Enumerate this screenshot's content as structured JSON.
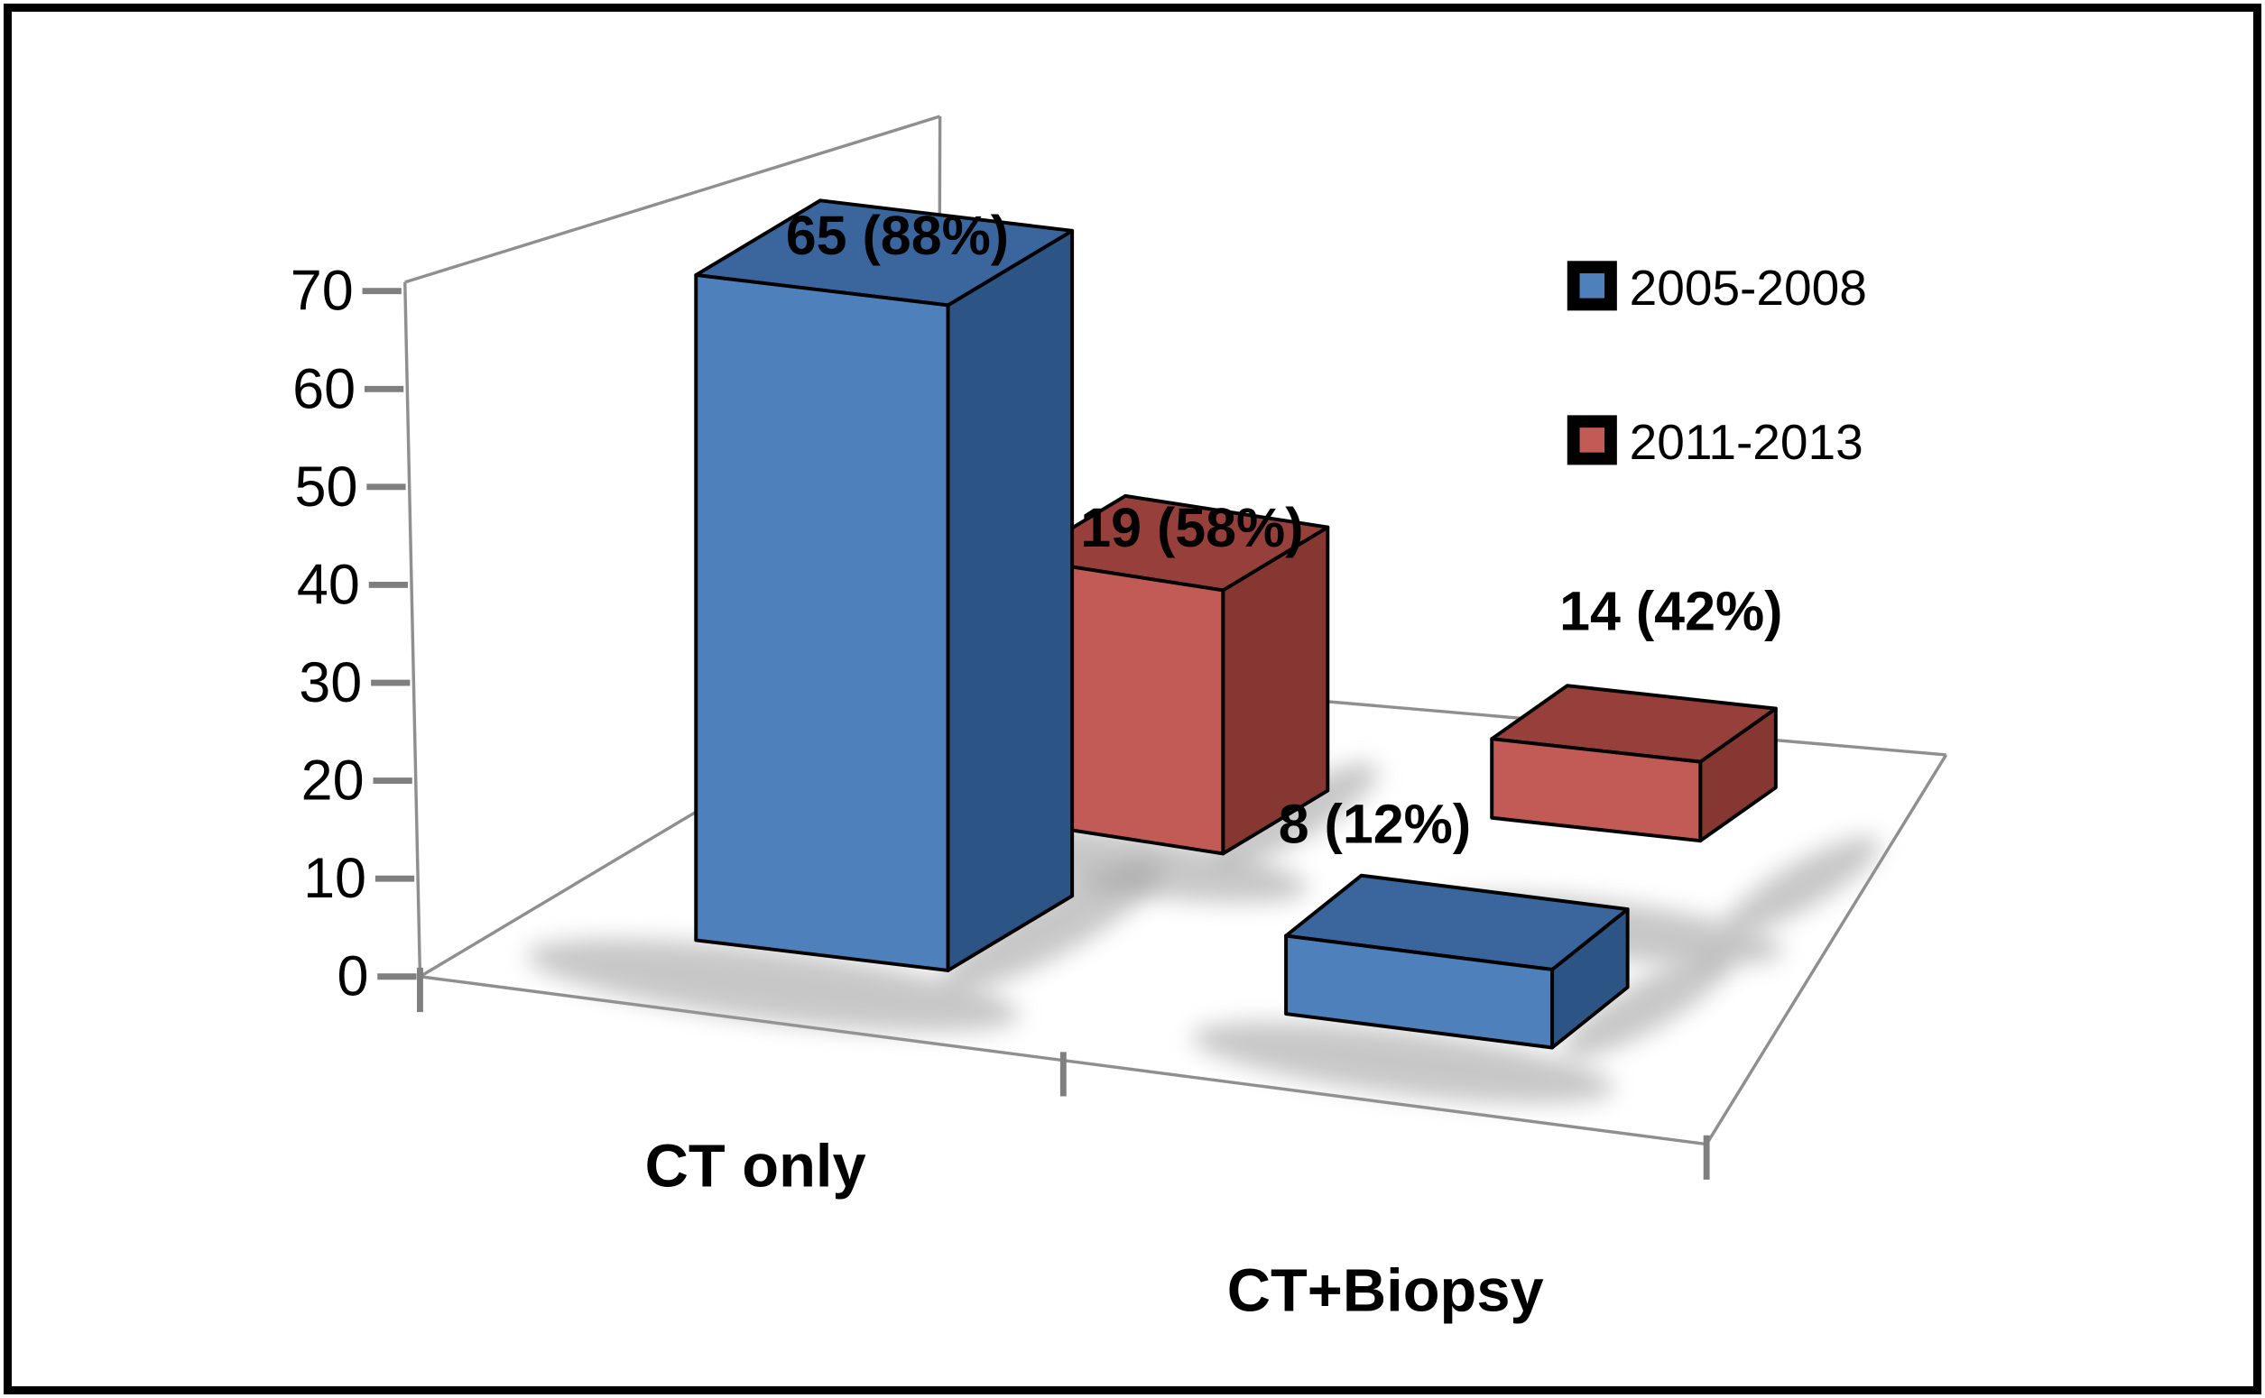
{
  "chart_data": {
    "type": "bar",
    "projection": "3d-column",
    "title": "",
    "xlabel": "",
    "ylabel": "",
    "categories": [
      "CT only",
      "CT+Biopsy"
    ],
    "series": [
      {
        "name": "2005-2008",
        "color": "#4e81bb",
        "color_top": "#3a669d",
        "color_side": "#2c5585",
        "values": [
          65,
          8
        ],
        "data_labels": [
          "65 (88%)",
          "8 (12%)"
        ]
      },
      {
        "name": "2011-2013",
        "color": "#c25b55",
        "color_top": "#97403b",
        "color_side": "#873732",
        "values": [
          19,
          14
        ],
        "data_labels": [
          "19 (58%)",
          "14 (42%)"
        ]
      }
    ],
    "ylim": [
      0,
      70
    ],
    "yticks": [
      0,
      10,
      20,
      30,
      40,
      50,
      60,
      70
    ],
    "grid": false,
    "legend_position": "top-right"
  },
  "frame": {
    "border_color": "#000000",
    "background": "#ffffff"
  }
}
